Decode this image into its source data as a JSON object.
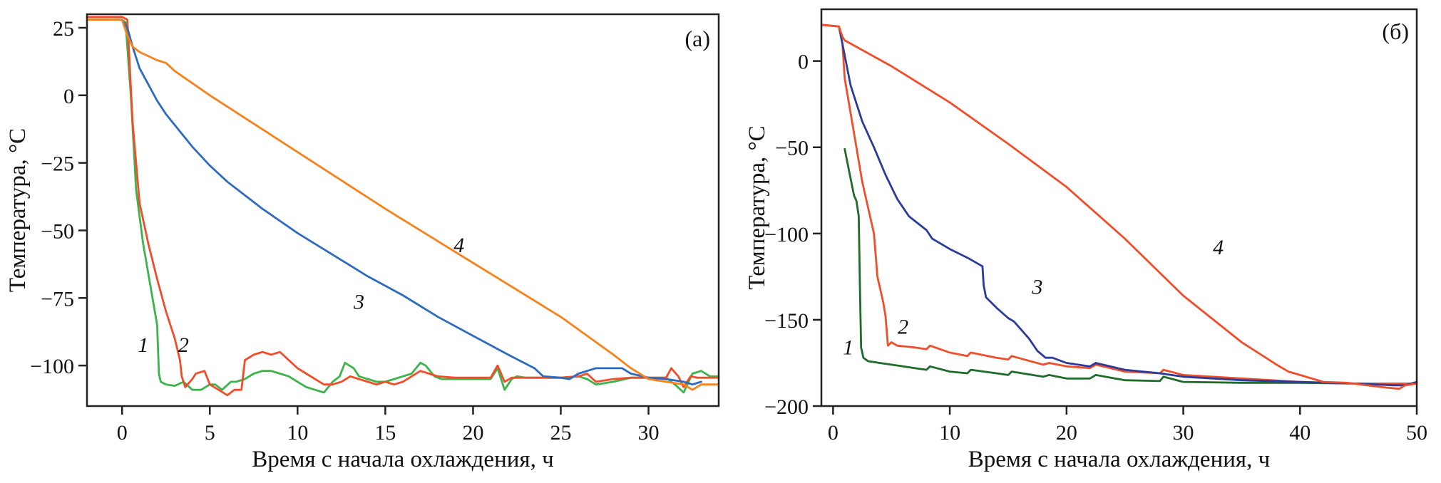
{
  "chart_data": [
    {
      "type": "line",
      "panel_label": "(а)",
      "title": "",
      "xlabel": "Время с начала охлаждения, ч",
      "ylabel": "Температура, °C",
      "xlim": [
        -2,
        34
      ],
      "ylim": [
        -115,
        30
      ],
      "xticks": [
        0,
        5,
        10,
        15,
        20,
        25,
        30
      ],
      "yticks": [
        25,
        0,
        -25,
        -50,
        -75,
        -100
      ],
      "ytick_labels": [
        "25",
        "0",
        "−25",
        "−50",
        "−75",
        "−100"
      ],
      "grid": false,
      "legend": "none",
      "series": [
        {
          "name": "1",
          "color": "#3cb44b",
          "x": [
            -2,
            0,
            0.2,
            0.5,
            0.8,
            1.2,
            1.6,
            2.0,
            2.1,
            2.2,
            2.5,
            3.0,
            3.5,
            4.0,
            4.5,
            5.0,
            5.3,
            5.7,
            6.2,
            6.5,
            7.0,
            7.5,
            8.0,
            8.5,
            9.0,
            9.5,
            10.0,
            10.5,
            11.0,
            11.5,
            12.0,
            12.4,
            12.7,
            13.2,
            13.5,
            14.0,
            14.5,
            15.0,
            15.5,
            16.0,
            16.5,
            17.0,
            17.3,
            17.8,
            18.2,
            19.0,
            20.0,
            21.0,
            21.4,
            21.8,
            22.2,
            22.5,
            23.0,
            24.0,
            25.0,
            26.0,
            26.5,
            27.0,
            28.0,
            29.0,
            30.0,
            31.0,
            31.5,
            32.0,
            32.5,
            33.0,
            33.5,
            34.0
          ],
          "y": [
            28,
            28,
            27,
            0,
            -35,
            -55,
            -70,
            -85,
            -103,
            -106,
            -107,
            -107.5,
            -106,
            -109,
            -109,
            -107,
            -107,
            -109,
            -106,
            -106,
            -105,
            -103,
            -102,
            -102,
            -103,
            -104,
            -106,
            -108,
            -109,
            -110,
            -106,
            -104,
            -99,
            -101,
            -104,
            -105,
            -106,
            -106,
            -105,
            -104,
            -103,
            -99,
            -100,
            -104,
            -105,
            -105,
            -105,
            -105,
            -101,
            -109,
            -105,
            -104,
            -104.5,
            -104.5,
            -104.5,
            -104,
            -105,
            -107,
            -106,
            -104.5,
            -104.5,
            -104.5,
            -107,
            -110,
            -103,
            -102,
            -104,
            -104
          ]
        },
        {
          "name": "2",
          "color": "#f04e2a",
          "x": [
            -2,
            0,
            0.3,
            0.6,
            1.0,
            1.5,
            2.0,
            2.5,
            3.0,
            3.3,
            3.4,
            3.6,
            4.0,
            4.2,
            4.7,
            5.0,
            5.5,
            6.0,
            6.4,
            6.8,
            7.0,
            7.5,
            8.0,
            8.5,
            9.0,
            9.5,
            10.0,
            10.5,
            11.0,
            11.5,
            12.0,
            12.5,
            13.0,
            13.5,
            14.0,
            14.5,
            15.0,
            15.5,
            16.0,
            16.5,
            17.0,
            17.5,
            18.0,
            19.0,
            20.0,
            21.0,
            21.4,
            21.8,
            22.2,
            23.0,
            24.0,
            25.0,
            26.0,
            26.5,
            27.0,
            28.0,
            29.0,
            30.0,
            31.0,
            31.3,
            31.7,
            32.0,
            32.4,
            32.8,
            33.5,
            34.0
          ],
          "y": [
            29,
            29,
            28,
            -10,
            -40,
            -55,
            -68,
            -80,
            -90,
            -98,
            -104,
            -108,
            -105,
            -103,
            -102,
            -107,
            -109,
            -111,
            -109,
            -109,
            -98,
            -96,
            -95,
            -96,
            -95,
            -98,
            -101,
            -103,
            -105,
            -107,
            -107,
            -106,
            -104,
            -105,
            -106,
            -107,
            -106,
            -107,
            -106,
            -104,
            -102,
            -103,
            -104,
            -104.5,
            -104.5,
            -104.5,
            -100,
            -106,
            -104.5,
            -104.5,
            -104.5,
            -104.5,
            -104,
            -103,
            -106,
            -105,
            -104.5,
            -104.5,
            -104.5,
            -101,
            -104,
            -108,
            -104,
            -104.5,
            -104.5,
            -104.5
          ]
        },
        {
          "name": "3",
          "color": "#2e6bbf",
          "x": [
            -2,
            0,
            0.3,
            0.6,
            1.0,
            1.5,
            2.0,
            2.5,
            3.0,
            4.0,
            5.0,
            6.0,
            7.0,
            8.0,
            10.0,
            12.0,
            14.0,
            16.0,
            18.0,
            20.0,
            22.0,
            23.5,
            24.0,
            25.0,
            25.5,
            26.0,
            26.5,
            27.0,
            28.0,
            28.5,
            29.0,
            30.0,
            31.0,
            32.0,
            32.5,
            33.0
          ],
          "y": [
            28,
            28,
            25,
            18,
            10,
            4,
            -2,
            -7,
            -11,
            -19,
            -26,
            -32,
            -37,
            -42,
            -51,
            -59,
            -67,
            -74,
            -82,
            -89,
            -96,
            -101,
            -104,
            -104.5,
            -105,
            -103,
            -102,
            -101,
            -101,
            -101,
            -103,
            -104.5,
            -105,
            -106,
            -107,
            -106
          ]
        },
        {
          "name": "4",
          "color": "#f7821b",
          "x": [
            -2,
            0,
            0.3,
            0.6,
            1.0,
            2.0,
            2.5,
            3.0,
            5.0,
            10.0,
            15.0,
            20.0,
            25.0,
            28.0,
            29.0,
            30.0,
            31.0,
            32.0,
            32.5,
            33.0,
            34.0
          ],
          "y": [
            28,
            28,
            22,
            18,
            16,
            13,
            12,
            9,
            0,
            -21,
            -42,
            -62,
            -82,
            -96,
            -101,
            -105,
            -106,
            -107,
            -109,
            -107,
            -107
          ]
        }
      ],
      "annotations": [
        {
          "text": "1",
          "x": 1.2,
          "y": -95
        },
        {
          "text": "2",
          "x": 3.5,
          "y": -95
        },
        {
          "text": "3",
          "x": 13.5,
          "y": -79
        },
        {
          "text": "4",
          "x": 19.2,
          "y": -58
        }
      ]
    },
    {
      "type": "line",
      "panel_label": "(б)",
      "title": "",
      "xlabel": "Время с начала охлаждения, ч",
      "ylabel": "Температура, °C",
      "xlim": [
        -1,
        50
      ],
      "ylim": [
        -200,
        30
      ],
      "xticks": [
        0,
        10,
        20,
        30,
        40,
        50
      ],
      "yticks": [
        0,
        -50,
        -100,
        -150,
        -200
      ],
      "ytick_labels": [
        "0",
        "−50",
        "−100",
        "−150",
        "−200"
      ],
      "grid": false,
      "legend": "none",
      "series": [
        {
          "name": "1",
          "color": "#1e6b2a",
          "x": [
            1.0,
            1.5,
            1.8,
            2.0,
            2.2,
            2.3,
            2.4,
            2.6,
            3.0,
            4.0,
            5.0,
            6.0,
            7.0,
            8.0,
            8.3,
            10.0,
            11.5,
            11.8,
            14.0,
            15.0,
            15.3,
            18.0,
            18.5,
            20.0,
            22.0,
            22.5,
            25.0,
            28.0,
            28.3,
            30.0,
            35.0,
            38.0,
            40.0,
            45.0,
            48.0,
            50.0
          ],
          "y": [
            -51,
            -68,
            -78,
            -81,
            -90,
            -130,
            -166,
            -172,
            -174,
            -175,
            -176,
            -177,
            -178,
            -179,
            -177,
            -180,
            -181,
            -179,
            -181,
            -182,
            -180,
            -183,
            -182,
            -184,
            -184,
            -182,
            -185,
            -185.5,
            -183,
            -186,
            -186.5,
            -186.5,
            -186.5,
            -187,
            -187,
            -187
          ]
        },
        {
          "name": "2",
          "color": "#f04e2a",
          "x": [
            -1,
            0.5,
            0.8,
            1.0,
            1.5,
            2.0,
            2.5,
            3.0,
            3.5,
            3.8,
            4.3,
            4.5,
            4.7,
            5.0,
            5.5,
            7.0,
            8.0,
            8.3,
            10.0,
            11.5,
            11.8,
            14.0,
            15.0,
            15.3,
            18.0,
            18.5,
            20.0,
            22.0,
            22.5,
            25.0,
            28.0,
            28.3,
            30.0,
            35.0,
            40.0,
            45.0,
            48.0,
            50.0
          ],
          "y": [
            21,
            20,
            10,
            -10,
            -30,
            -50,
            -70,
            -85,
            -100,
            -125,
            -140,
            -148,
            -165,
            -163,
            -165,
            -166,
            -167,
            -165,
            -169,
            -171,
            -169,
            -172,
            -173,
            -171,
            -176,
            -175,
            -177,
            -178,
            -176,
            -180,
            -181,
            -179,
            -182,
            -184,
            -186,
            -187,
            -187,
            -187
          ]
        },
        {
          "name": "3",
          "color": "#2a3b9a",
          "x": [
            0.5,
            0.8,
            1.5,
            2.5,
            3.5,
            4.5,
            5.5,
            6.5,
            8.0,
            8.5,
            10.0,
            11.5,
            12.8,
            12.9,
            13.1,
            14.0,
            15.0,
            15.5,
            16.8,
            17.5,
            18.2,
            18.8,
            20.0,
            22.0,
            22.5,
            25.0,
            28.0,
            30.0,
            35.0,
            40.0,
            45.0,
            48.0,
            49.0,
            50.0
          ],
          "y": [
            20,
            10,
            -14,
            -35,
            -50,
            -66,
            -80,
            -90,
            -98,
            -103,
            -109,
            -114,
            -119,
            -130,
            -137,
            -143,
            -149,
            -151,
            -161,
            -168,
            -172,
            -172,
            -175,
            -177,
            -175,
            -179,
            -181,
            -183,
            -185,
            -186,
            -187,
            -188,
            -188,
            -186
          ]
        },
        {
          "name": "4",
          "color": "#f04e2a",
          "x": [
            -1,
            0.5,
            0.8,
            1.0,
            5.0,
            10.0,
            15.0,
            20.0,
            25.0,
            30.0,
            35.0,
            38.0,
            39.0,
            40.0,
            42.0,
            44.0,
            47.0,
            48.5,
            49.0,
            50.0
          ],
          "y": [
            21,
            20,
            14,
            12,
            -3,
            -24,
            -48,
            -73,
            -103,
            -136,
            -163,
            -176,
            -180,
            -182,
            -186,
            -186.5,
            -189,
            -190,
            -188,
            -187
          ]
        }
      ],
      "annotations": [
        {
          "text": "1",
          "x": 1.3,
          "y": -170
        },
        {
          "text": "2",
          "x": 6.0,
          "y": -158
        },
        {
          "text": "3",
          "x": 17.5,
          "y": -135
        },
        {
          "text": "4",
          "x": 33.0,
          "y": -112
        }
      ]
    }
  ]
}
